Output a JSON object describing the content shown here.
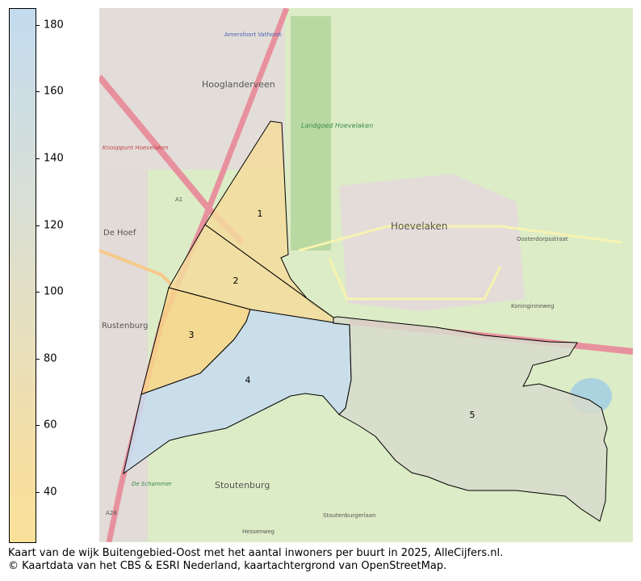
{
  "colorbar": {
    "ticks": [
      "180",
      "160",
      "140",
      "120",
      "100",
      "80",
      "60",
      "40"
    ],
    "range": [
      25,
      185
    ],
    "colors": [
      "#c3dbef",
      "#d8dfd6",
      "#e6dfbf",
      "#f5dea2",
      "#fae19a"
    ]
  },
  "map": {
    "places": {
      "hoevelaken": "Hoevelaken",
      "hooglanderveen": "Hooglanderveen",
      "stoutenburg": "Stoutenburg",
      "rustenburg": "Rustenburg",
      "de_hoef": "De Hoef",
      "vathorst": "Amersfoort Vathorst",
      "landgoed": "Landgoed Hoevelaken",
      "knooppunt": "Knooppunt Hoevelaken",
      "a1": "A1",
      "a28": "A28",
      "oosterdorpsstraat": "Oosterdorpsstraat",
      "koninginneweg": "Koninginneweg",
      "de_schammer": "De Schammer",
      "hessenweg": "Hessenweg",
      "stoutenburgerlaan": "Stoutenburgerlaan"
    },
    "regions": [
      {
        "label": "1",
        "color": "#f5dc9c"
      },
      {
        "label": "2",
        "color": "#f5dc9c"
      },
      {
        "label": "3",
        "color": "#f8d68a"
      },
      {
        "label": "4",
        "color": "#c7dcee"
      },
      {
        "label": "5",
        "color": "#d8dacb"
      }
    ]
  },
  "caption": {
    "line1": "Kaart van de wijk Buitengebied-Oost met het aantal inwoners per buurt in 2025, AlleCijfers.nl.",
    "line2": "© Kaartdata van het CBS & ESRI Nederland, kaartachtergrond van OpenStreetMap."
  }
}
